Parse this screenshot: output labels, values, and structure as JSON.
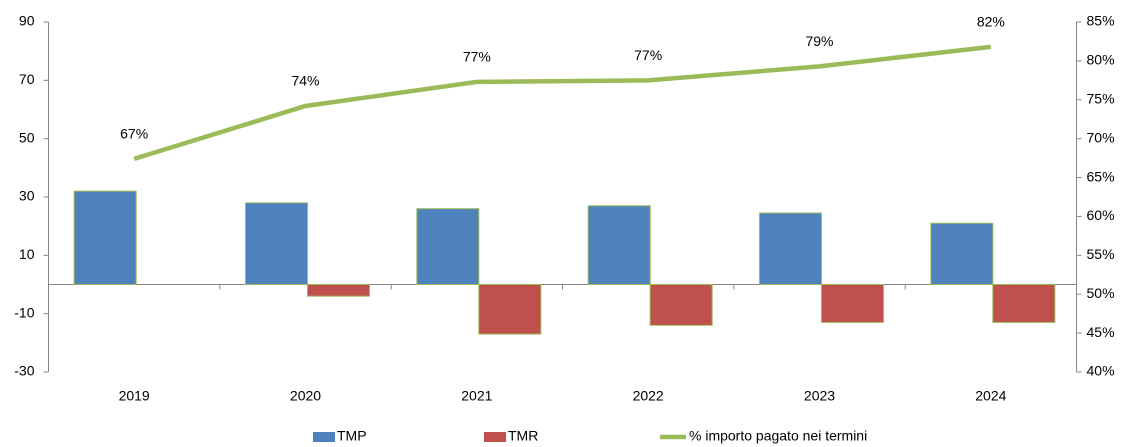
{
  "chart_data": {
    "type": "bar-line",
    "categories": [
      "2019",
      "2020",
      "2021",
      "2022",
      "2023",
      "2024"
    ],
    "series": [
      {
        "name": "TMP",
        "color": "#4f81bd",
        "values": [
          32,
          28,
          26,
          27,
          24.5,
          21
        ]
      },
      {
        "name": "TMR",
        "color": "#c0504d",
        "values": [
          0,
          -4,
          -17,
          -14,
          -13,
          -13
        ]
      },
      {
        "name": "% importo pagato nei termini",
        "color": "#9bbb59",
        "axis": "y2",
        "type": "line",
        "values": [
          67.4,
          74.2,
          77.3,
          77.5,
          79.3,
          81.8
        ],
        "value_labels": [
          "67%",
          "74%",
          "77%",
          "77%",
          "79%",
          "82%"
        ]
      }
    ],
    "ylim": [
      -30,
      90
    ],
    "yticks": [
      -30,
      -10,
      10,
      30,
      50,
      70,
      90
    ],
    "y2lim": [
      40,
      85
    ],
    "y2ticks": [
      {
        "value": 40,
        "label": "40%"
      },
      {
        "value": 45,
        "label": "45%"
      },
      {
        "value": 50,
        "label": "50%"
      },
      {
        "value": 55,
        "label": "55%"
      },
      {
        "value": 60,
        "label": "60%"
      },
      {
        "value": 65,
        "label": "65%"
      },
      {
        "value": 70,
        "label": "70%"
      },
      {
        "value": 75,
        "label": "75%"
      },
      {
        "value": 80,
        "label": "80%"
      },
      {
        "value": 85,
        "label": "85%"
      }
    ],
    "grid": false,
    "legend": "bottom"
  }
}
